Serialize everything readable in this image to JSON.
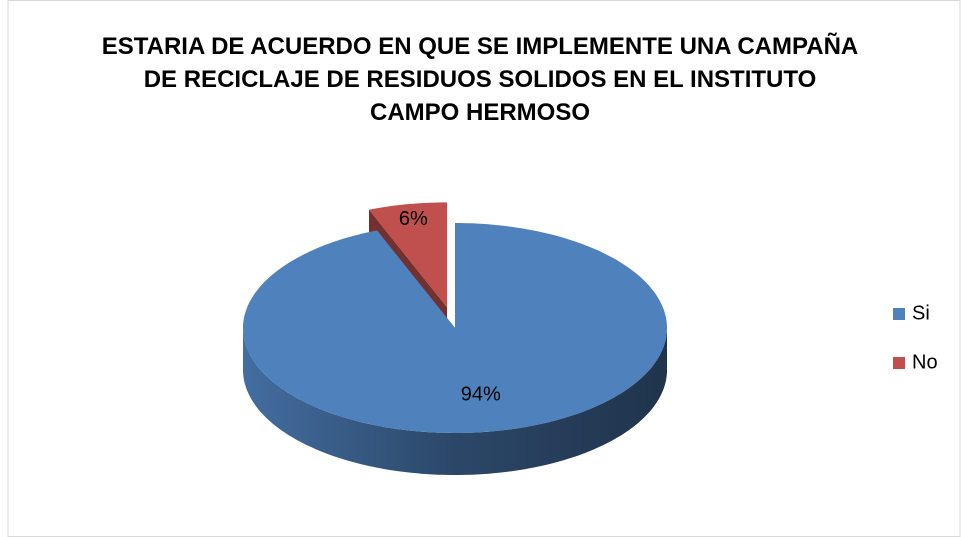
{
  "chart_data": {
    "type": "pie",
    "title": "ESTARIA DE ACUERDO EN QUE SE IMPLEMENTE UNA CAMPAÑA DE RECICLAJE DE RESIDUOS SOLIDOS EN EL INSTITUTO CAMPO HERMOSO",
    "categories": [
      "Si",
      "No"
    ],
    "values": [
      94,
      6
    ],
    "value_labels": [
      "94%",
      "6%"
    ],
    "colors": [
      "#4f81bd",
      "#c0504d"
    ],
    "legend": "right"
  }
}
